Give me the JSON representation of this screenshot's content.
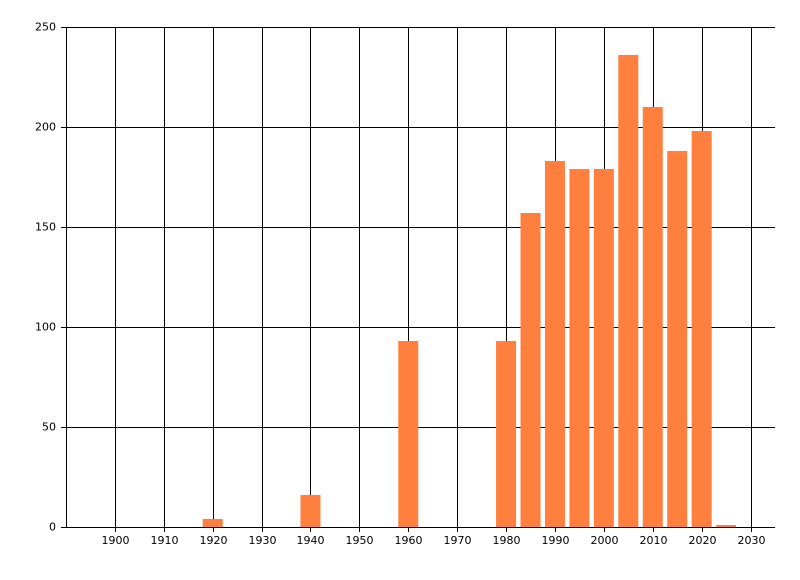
{
  "chart_data": {
    "type": "bar",
    "x": [
      1920,
      1940,
      1960,
      1980,
      1985,
      1990,
      1995,
      2000,
      2005,
      2010,
      2015,
      2020,
      2025
    ],
    "values": [
      4,
      16,
      93,
      93,
      157,
      183,
      179,
      179,
      236,
      210,
      188,
      198,
      1
    ],
    "color": "#ff7f3f",
    "xlim": [
      1890,
      2035
    ],
    "xticks": [
      1900,
      1910,
      1920,
      1930,
      1940,
      1950,
      1960,
      1970,
      1980,
      1990,
      2000,
      2010,
      2020,
      2030
    ],
    "ylim": [
      0,
      250
    ],
    "yticks": [
      0,
      50,
      100,
      150,
      200,
      250
    ],
    "grid": true
  }
}
